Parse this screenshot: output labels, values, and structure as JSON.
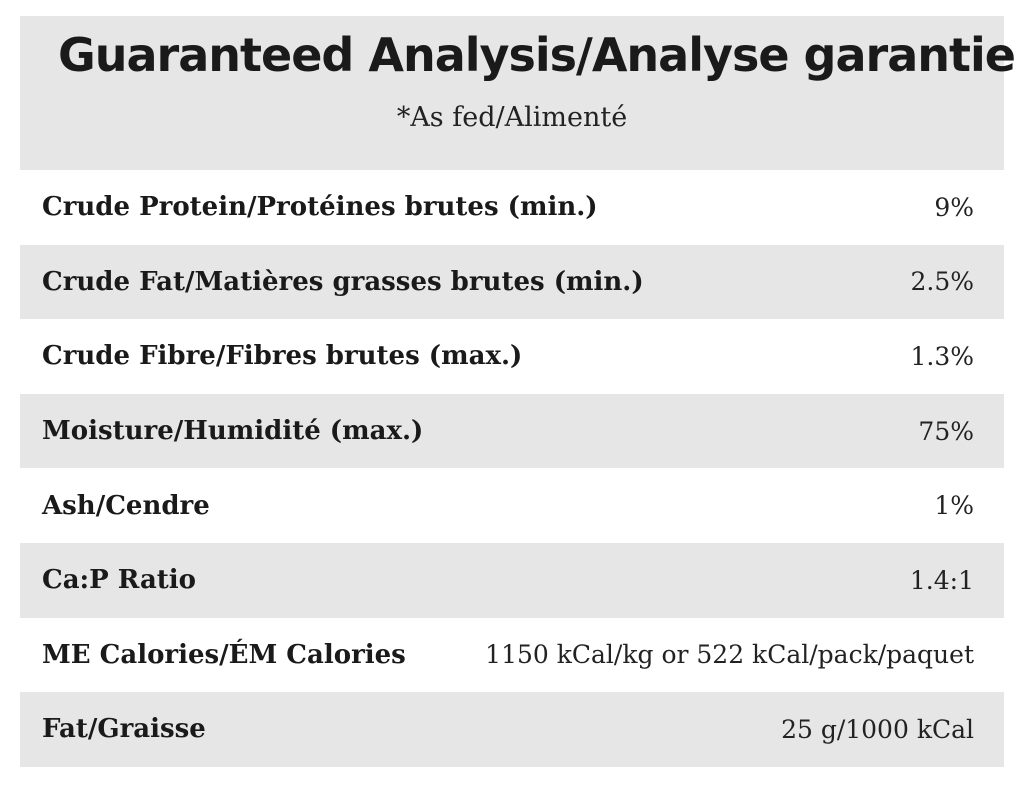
{
  "header": {
    "title": "Guaranteed Analysis/Analyse garantie",
    "subtitle": "*As fed/Alimenté"
  },
  "table": {
    "rows": [
      [
        "Crude Protein/Protéines brutes (min.)",
        "9%"
      ],
      [
        "Crude Fat/Matières grasses brutes (min.)",
        "2.5%"
      ],
      [
        "Crude Fibre/Fibres brutes (max.)",
        "1.3%"
      ],
      [
        "Moisture/Humidité (max.)",
        "75%"
      ],
      [
        "Ash/Cendre",
        "1%"
      ],
      [
        "Ca:P Ratio",
        "1.4:1"
      ],
      [
        "ME Calories/ÉM Calories",
        "1150 kCal/kg or 522 kCal/pack/paquet"
      ],
      [
        "Fat/Graisse",
        "25 g/1000 kCal"
      ]
    ]
  }
}
